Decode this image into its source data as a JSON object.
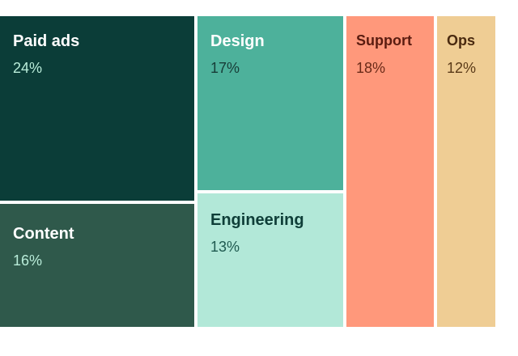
{
  "chart_data": {
    "type": "treemap",
    "title": "",
    "total": 100,
    "value_suffix": "%",
    "items": [
      {
        "name": "Paid ads",
        "value": 24,
        "label": "24%",
        "color": "#0b3d38",
        "label_color": "#ffffff",
        "value_color": "#b9ecd9"
      },
      {
        "name": "Content",
        "value": 16,
        "label": "16%",
        "color": "#2f594b",
        "label_color": "#ffffff",
        "value_color": "#b9ecd9"
      },
      {
        "name": "Design",
        "value": 17,
        "label": "17%",
        "color": "#4db19b",
        "label_color": "#ffffff",
        "value_color": "#173c37"
      },
      {
        "name": "Engineering",
        "value": 13,
        "label": "13%",
        "color": "#b2e8d8",
        "label_color": "#0e3e38",
        "value_color": "#1f5a50"
      },
      {
        "name": "Support",
        "value": 18,
        "label": "18%",
        "color": "#ff987b",
        "label_color": "#5a1c10",
        "value_color": "#6a2a18"
      },
      {
        "name": "Ops",
        "value": 12,
        "label": "12%",
        "color": "#efcd94",
        "label_color": "#4a2a10",
        "value_color": "#5a3a18"
      }
    ]
  }
}
